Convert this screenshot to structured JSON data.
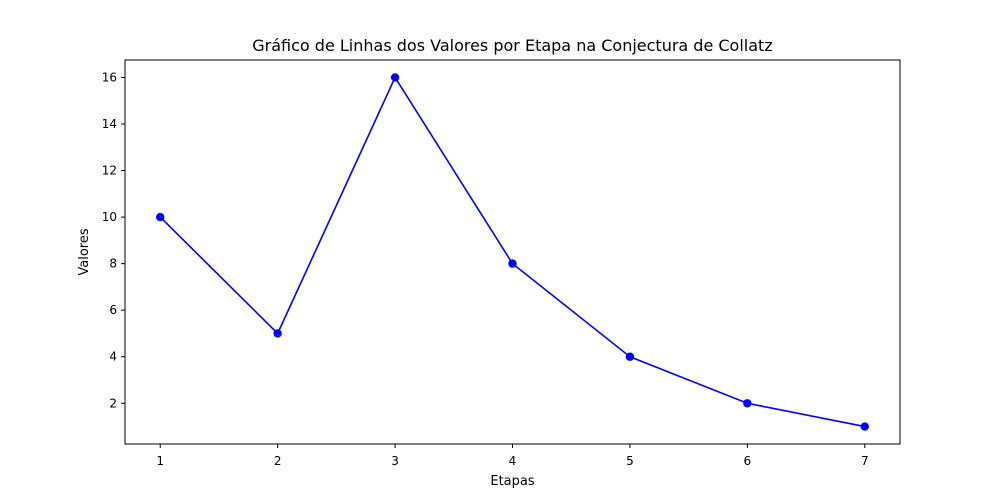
{
  "chart_data": {
    "type": "line",
    "title": "Gráfico de Linhas dos Valores por Etapa na Conjectura de Collatz",
    "xlabel": "Etapas",
    "ylabel": "Valores",
    "x": [
      1,
      2,
      3,
      4,
      5,
      6,
      7
    ],
    "series": [
      {
        "values": [
          10,
          5,
          16,
          8,
          4,
          2,
          1
        ]
      }
    ],
    "xlim": [
      0.7,
      7.3
    ],
    "ylim": [
      0.25,
      16.75
    ],
    "xticks": [
      1,
      2,
      3,
      4,
      5,
      6,
      7
    ],
    "yticks": [
      2,
      4,
      6,
      8,
      10,
      12,
      14,
      16
    ],
    "grid": false,
    "line_color": "#0000ff",
    "marker": "circle"
  }
}
